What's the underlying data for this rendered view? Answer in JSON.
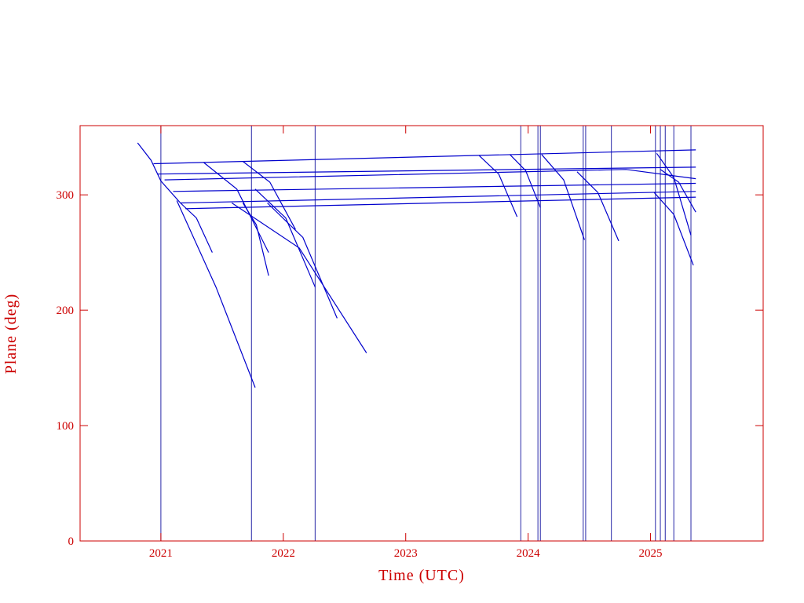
{
  "chart_data": {
    "type": "line",
    "xlabel": "Time (UTC)",
    "ylabel": "Plane (deg)",
    "xlim": [
      2020.34,
      2025.92
    ],
    "ylim": [
      0,
      360
    ],
    "xticks": [
      2021,
      2022,
      2023,
      2024,
      2025
    ],
    "yticks": [
      0,
      100,
      200,
      300
    ],
    "axis_color": "#cc0000",
    "event_color": "#2828a8",
    "events_x": [
      2021.0,
      2021.74,
      2022.26,
      2023.94,
      2024.08,
      2024.1,
      2024.45,
      2024.47,
      2024.68,
      2025.04,
      2025.08,
      2025.12,
      2025.19,
      2025.33
    ],
    "series": [
      {
        "color": "#0000cc",
        "x": [
          2020.81,
          2020.92,
          2021.0,
          2021.16
        ],
        "values": [
          345,
          330,
          312,
          293
        ]
      },
      {
        "color": "#0000cc",
        "x": [
          2020.94,
          2025.37
        ],
        "values": [
          327,
          339
        ]
      },
      {
        "color": "#0000cc",
        "x": [
          2020.97,
          2025.37
        ],
        "values": [
          318,
          324
        ]
      },
      {
        "color": "#0000cc",
        "x": [
          2021.03,
          2024.8,
          2025.37
        ],
        "values": [
          313,
          322,
          314
        ]
      },
      {
        "color": "#0000cc",
        "x": [
          2021.1,
          2025.37
        ],
        "values": [
          303,
          310
        ]
      },
      {
        "color": "#0000cc",
        "x": [
          2021.16,
          2025.37
        ],
        "values": [
          293,
          303
        ]
      },
      {
        "color": "#0000cc",
        "x": [
          2021.2,
          2025.37
        ],
        "values": [
          288,
          298
        ]
      },
      {
        "color": "#0000cc",
        "x": [
          2021.13,
          2021.45,
          2021.77
        ],
        "values": [
          295,
          220,
          133
        ]
      },
      {
        "color": "#0000cc",
        "x": [
          2021.16,
          2021.29,
          2021.42
        ],
        "values": [
          293,
          280,
          250
        ]
      },
      {
        "color": "#0000cc",
        "x": [
          2021.67,
          2021.78,
          2021.88
        ],
        "values": [
          293,
          274,
          230
        ]
      },
      {
        "color": "#0000cc",
        "x": [
          2021.58,
          2022.13,
          2022.68
        ],
        "values": [
          293,
          254,
          163
        ]
      },
      {
        "color": "#0000cc",
        "x": [
          2021.87,
          2022.16,
          2022.44
        ],
        "values": [
          293,
          263,
          193
        ]
      },
      {
        "color": "#0000cc",
        "x": [
          2021.67,
          2021.89,
          2022.1
        ],
        "values": [
          329,
          311,
          270
        ]
      },
      {
        "color": "#0000cc",
        "x": [
          2021.35,
          2021.62,
          2021.88
        ],
        "values": [
          328,
          305,
          250
        ]
      },
      {
        "color": "#0000cc",
        "x": [
          2021.77,
          2022.02,
          2022.26
        ],
        "values": [
          305,
          280,
          220
        ]
      },
      {
        "color": "#0000cc",
        "x": [
          2023.6,
          2023.76,
          2023.91
        ],
        "values": [
          334,
          318,
          281
        ]
      },
      {
        "color": "#0000cc",
        "x": [
          2023.85,
          2023.98,
          2024.1
        ],
        "values": [
          335,
          321,
          289
        ]
      },
      {
        "color": "#0000cc",
        "x": [
          2024.11,
          2024.29,
          2024.46
        ],
        "values": [
          335,
          313,
          261
        ]
      },
      {
        "color": "#0000cc",
        "x": [
          2024.4,
          2024.57,
          2024.74
        ],
        "values": [
          320,
          302,
          260
        ]
      },
      {
        "color": "#0000cc",
        "x": [
          2025.05,
          2025.19,
          2025.33
        ],
        "values": [
          336,
          315,
          265
        ]
      },
      {
        "color": "#0000cc",
        "x": [
          2025.03,
          2025.19,
          2025.35
        ],
        "values": [
          302,
          283,
          239
        ]
      },
      {
        "color": "#0000cc",
        "x": [
          2025.08,
          2025.23,
          2025.37
        ],
        "values": [
          322,
          311,
          285
        ]
      }
    ]
  }
}
